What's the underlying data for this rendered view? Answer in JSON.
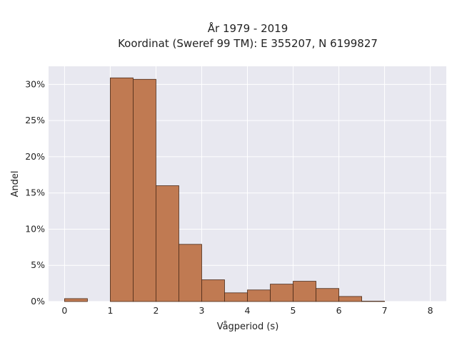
{
  "chart_data": {
    "type": "bar",
    "title": "År 1979 - 2019",
    "subtitle": "Koordinat (Sweref 99 TM): E 355207, N 6199827",
    "xlabel": "Vågperiod (s)",
    "ylabel": "Andel",
    "xlim": [
      -0.35,
      8.35
    ],
    "ylim": [
      0,
      32.5
    ],
    "x_ticks": [
      0,
      1,
      2,
      3,
      4,
      5,
      6,
      7,
      8
    ],
    "y_ticks": [
      0,
      5,
      10,
      15,
      20,
      25,
      30
    ],
    "y_tick_labels": [
      "0%",
      "5%",
      "10%",
      "15%",
      "20%",
      "25%",
      "30%"
    ],
    "bin_width": 0.5,
    "bins": [
      {
        "start": 0.0,
        "end": 0.5,
        "value": 0.4
      },
      {
        "start": 0.5,
        "end": 1.0,
        "value": 0.0
      },
      {
        "start": 1.0,
        "end": 1.5,
        "value": 30.9
      },
      {
        "start": 1.5,
        "end": 2.0,
        "value": 30.7
      },
      {
        "start": 2.0,
        "end": 2.5,
        "value": 16.0
      },
      {
        "start": 2.5,
        "end": 3.0,
        "value": 7.9
      },
      {
        "start": 3.0,
        "end": 3.5,
        "value": 3.0
      },
      {
        "start": 3.5,
        "end": 4.0,
        "value": 1.2
      },
      {
        "start": 4.0,
        "end": 4.5,
        "value": 1.6
      },
      {
        "start": 4.5,
        "end": 5.0,
        "value": 2.4
      },
      {
        "start": 5.0,
        "end": 5.5,
        "value": 2.8
      },
      {
        "start": 5.5,
        "end": 6.0,
        "value": 1.8
      },
      {
        "start": 6.0,
        "end": 6.5,
        "value": 0.7
      },
      {
        "start": 6.5,
        "end": 7.0,
        "value": 0.05
      }
    ],
    "grid": true,
    "legend": "none",
    "colors": {
      "bar_fill": "#c07a52",
      "bar_edge": "#4a2a18",
      "plot_background": "#e8e8f0",
      "grid": "#ffffff"
    }
  }
}
